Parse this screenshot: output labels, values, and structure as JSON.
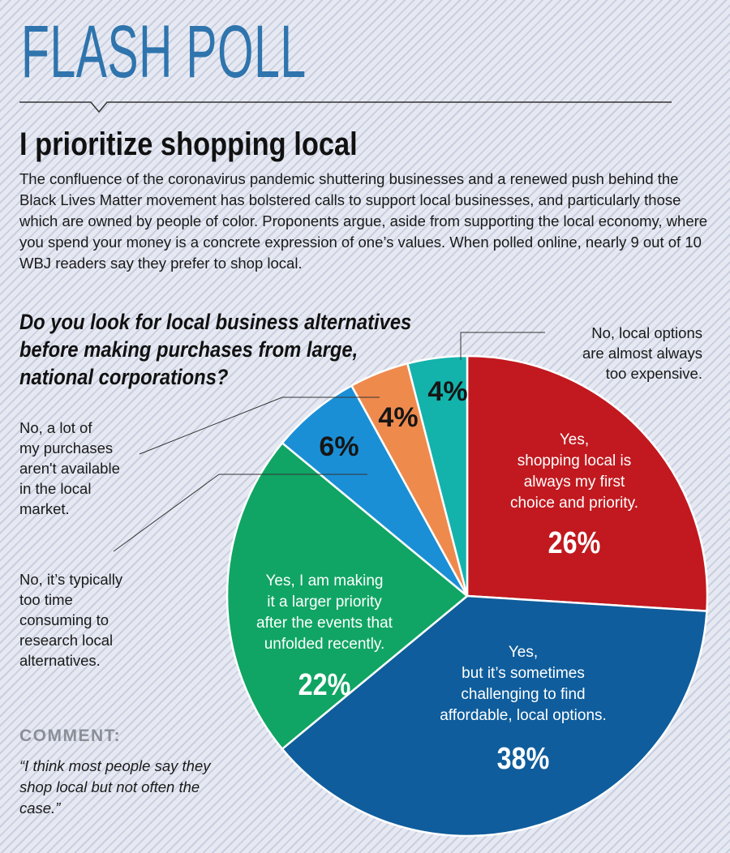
{
  "masthead": "FLASH POLL",
  "headline": "I prioritize shopping local",
  "intro": "The confluence of the coronavirus pandemic shuttering businesses and a renewed push behind the Black Lives Matter movement has bolstered calls to support local businesses, and particularly those which are owned by people of color. Proponents argue, aside from supporting the local economy, where you spend your money is a concrete expression of one’s values. When polled online, nearly 9 out of 10 WBJ readers say they prefer to shop local.",
  "chart_data": {
    "type": "pie",
    "title": "Do you look for local business alternatives before making purchases from large, national corporations?",
    "colors": {
      "red": "#c1191f",
      "blue": "#0f5d9c",
      "green": "#10a564",
      "lightblue": "#1b8fd6",
      "orange": "#ef8a4d",
      "teal": "#13b3ac"
    },
    "slices": [
      {
        "label": "Yes, shopping local is always my first choice and priority.",
        "lines": [
          "Yes,",
          "shopping local is",
          "always my first",
          "choice and priority."
        ],
        "value": 26,
        "display": "26%",
        "color": "#c1191f"
      },
      {
        "label": "Yes, but it’s sometimes challenging to find affordable, local options.",
        "lines": [
          "Yes,",
          "but it’s sometimes",
          "challenging to find",
          "affordable, local options."
        ],
        "value": 38,
        "display": "38%",
        "color": "#0f5d9c"
      },
      {
        "label": "Yes, I am making it a larger priority after the events that unfolded recently.",
        "lines": [
          "Yes, I am making",
          "it a larger priority",
          "after the events that",
          "unfolded recently."
        ],
        "value": 22,
        "display": "22%",
        "color": "#10a564"
      },
      {
        "label": "No, it’s typically too time consuming to research local alternatives.",
        "lines": [],
        "value": 6,
        "display": "6%",
        "color": "#1b8fd6"
      },
      {
        "label": "No, a lot of my purchases aren't available in the local market.",
        "lines": [],
        "value": 4,
        "display": "4%",
        "color": "#ef8a4d"
      },
      {
        "label": "No, local options are almost always too expensive.",
        "lines": [],
        "value": 4,
        "display": "4%",
        "color": "#13b3ac"
      }
    ]
  },
  "notes": {
    "too_expensive": [
      "No, local options",
      "are almost always",
      "too expensive."
    ],
    "not_available": [
      "No, a lot of",
      "my purchases",
      "aren't available",
      "in the local",
      "market."
    ],
    "time_consuming": [
      "No, it’s typically",
      "too time",
      "consuming to",
      "research local",
      "alternatives."
    ]
  },
  "comment": {
    "label": "COMMENT:",
    "text": "“I think most people say they shop local but not often the case.”"
  }
}
